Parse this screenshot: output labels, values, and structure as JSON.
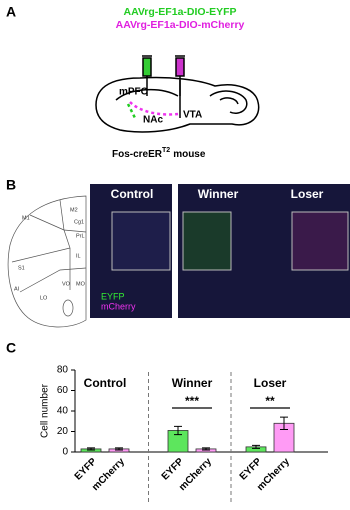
{
  "panel_a": {
    "label": "A",
    "virus_1": "AAVrg-EF1a-DIO-EYFP",
    "virus_2": "AAVrg-EF1a-DIO-mCherry",
    "region_1": "mPFC",
    "region_2": "NAc",
    "region_3": "VTA",
    "mouse_line": "Fos-creER",
    "mouse_line_sup": "T2",
    "mouse_word": "mouse"
  },
  "panel_b": {
    "label": "B",
    "atlas_labels": [
      "M2",
      "M1",
      "Cg1",
      "PrL",
      "S1",
      "IL",
      "AI",
      "VO",
      "MO",
      "LO"
    ],
    "image_1_title": "Control",
    "image_2_title": "Winner",
    "image_3_title": "Loser",
    "legend_1": "EYFP",
    "legend_2": "mCherry"
  },
  "panel_c_label": "C",
  "chart_data": {
    "type": "bar",
    "y_label": "Cell number",
    "groups": [
      "Control",
      "Winner",
      "Loser"
    ],
    "categories": [
      "EYFP",
      "mCherry",
      "EYFP",
      "mCherry",
      "EYFP",
      "mCherry"
    ],
    "values": [
      3,
      3,
      21,
      3,
      5,
      28
    ],
    "errors": [
      1,
      1,
      4,
      1,
      1.5,
      6
    ],
    "colors": [
      "#5de65d",
      "#ff9bf5",
      "#5de65d",
      "#ff9bf5",
      "#5de65d",
      "#ff9bf5"
    ],
    "significance": [
      "***",
      "**"
    ],
    "ylim": [
      0,
      80
    ],
    "yticks": [
      0,
      20,
      40,
      60,
      80
    ]
  }
}
